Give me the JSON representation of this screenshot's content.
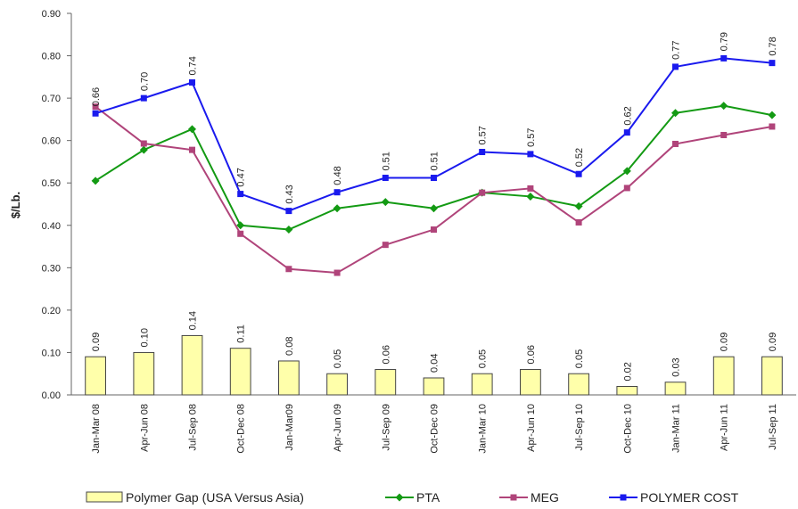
{
  "chart_data": {
    "type": "combo",
    "y_label": "$/Lb.",
    "categories": [
      "Jan-Mar 08",
      "Apr-Jun 08",
      "Jul-Sep 08",
      "Oct-Dec 08",
      "Jan-Mar09",
      "Apr-Jun 09",
      "Jul-Sep 09",
      "Oct-Dec 09",
      "Jan-Mar 10",
      "Apr-Jun 10",
      "Jul-Sep 10",
      "Oct-Dec 10",
      "Jan-Mar 11",
      "Apr-Jun 11",
      "Jul-Sep 11"
    ],
    "ylim": [
      0,
      0.9
    ],
    "yticks": [
      {
        "value": 0,
        "label": "0.00"
      },
      {
        "value": 0.1,
        "label": "0.10"
      },
      {
        "value": 0.2,
        "label": "0.20"
      },
      {
        "value": 0.3,
        "label": "0.30"
      },
      {
        "value": 0.4,
        "label": "0.40"
      },
      {
        "value": 0.5,
        "label": "0.50"
      },
      {
        "value": 0.6,
        "label": "0.60"
      },
      {
        "value": 0.7,
        "label": "0.70"
      },
      {
        "value": 0.8,
        "label": "0.80"
      },
      {
        "value": 0.9,
        "label": "0.90"
      }
    ],
    "grid": false,
    "legend": "bottom",
    "series": [
      {
        "name": "Polymer Gap (USA Versus Asia)",
        "type": "bar",
        "color": "#ffffaa",
        "values": [
          0.09,
          0.1,
          0.14,
          0.11,
          0.08,
          0.05,
          0.06,
          0.04,
          0.05,
          0.06,
          0.05,
          0.02,
          0.03,
          0.09,
          0.09
        ],
        "value_labels": [
          "0.09",
          "0.10",
          "0.14",
          "0.11",
          "0.08",
          "0.05",
          "0.06",
          "0.04",
          "0.05",
          "0.06",
          "0.05",
          "0.02",
          "0.03",
          "0.09",
          "0.09"
        ]
      },
      {
        "name": "PTA",
        "type": "line",
        "marker": "diamond",
        "color": "#139a13",
        "values": [
          0.505,
          0.578,
          0.627,
          0.4,
          0.39,
          0.44,
          0.455,
          0.44,
          0.477,
          0.468,
          0.445,
          0.528,
          0.665,
          0.682,
          0.66
        ]
      },
      {
        "name": "MEG",
        "type": "line",
        "marker": "square",
        "color": "#b0447a",
        "values": [
          0.68,
          0.593,
          0.578,
          0.38,
          0.297,
          0.288,
          0.354,
          0.39,
          0.477,
          0.487,
          0.407,
          0.488,
          0.592,
          0.613,
          0.633
        ]
      },
      {
        "name": "POLYMER COST",
        "type": "line",
        "marker": "square",
        "color": "#1a1aee",
        "values": [
          0.664,
          0.7,
          0.737,
          0.474,
          0.434,
          0.478,
          0.512,
          0.512,
          0.573,
          0.568,
          0.521,
          0.619,
          0.774,
          0.794,
          0.783
        ],
        "value_labels": [
          "0.66",
          "0.70",
          "0.74",
          "0.47",
          "0.43",
          "0.48",
          "0.51",
          "0.51",
          "0.57",
          "0.57",
          "0.52",
          "0.62",
          "0.77",
          "0.79",
          "0.78"
        ]
      }
    ]
  }
}
